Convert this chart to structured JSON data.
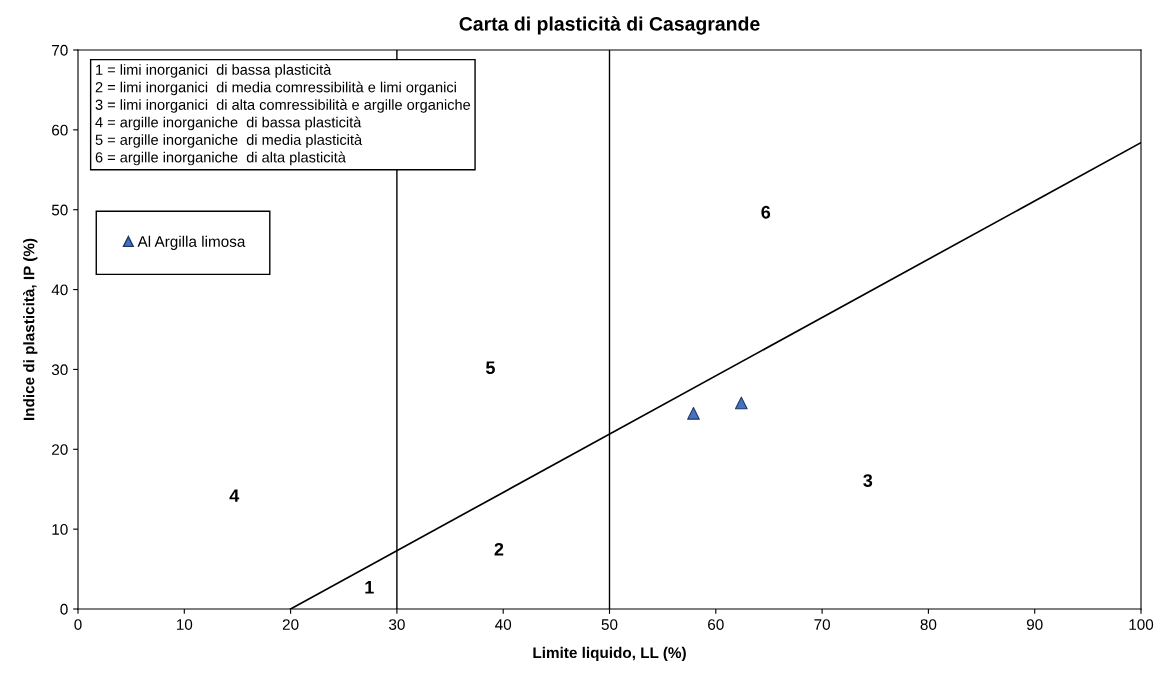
{
  "chart_data": {
    "type": "scatter",
    "title": "Carta di plasticità di Casagrande",
    "xlabel": "Limite liquido, LL (%)",
    "ylabel": "Indice di plasticità, IP (%)",
    "xlim": [
      0,
      100
    ],
    "xticks": [
      0,
      10,
      20,
      30,
      40,
      50,
      60,
      70,
      80,
      90,
      100
    ],
    "ylim": [
      0,
      70
    ],
    "yticks": [
      0,
      10,
      20,
      30,
      40,
      50,
      60,
      70
    ],
    "grid": false,
    "legend": "left",
    "marker": "triangle",
    "series": [
      {
        "name": "Al Argilla limosa",
        "color": "#4472c4",
        "x": [
          57.9,
          62.4
        ],
        "values": [
          24.5,
          25.8
        ]
      },
      {
        "type": "line",
        "color": "#000000",
        "marker": "none",
        "x": [
          20,
          100
        ],
        "values": [
          0,
          58.4
        ]
      }
    ],
    "ref_lines": [
      {
        "axis": "x",
        "value": 30,
        "color": "#000000"
      },
      {
        "axis": "x",
        "value": 50,
        "color": "#000000"
      }
    ],
    "annotations": [
      "1 = limi inorganici  di bassa plasticità\n2 = limi inorganici  di media comressibilità e limi organici\n3 = limi inorganici  di alta comressibilità e argille organiche\n4 = argille inorganiche  di bassa plasticità\n5 = argille inorganiche  di media plasticità\n6 = argille inorganiche  di alta plasticità",
      "1",
      "2",
      "3",
      "4",
      "5",
      "6"
    ]
  }
}
